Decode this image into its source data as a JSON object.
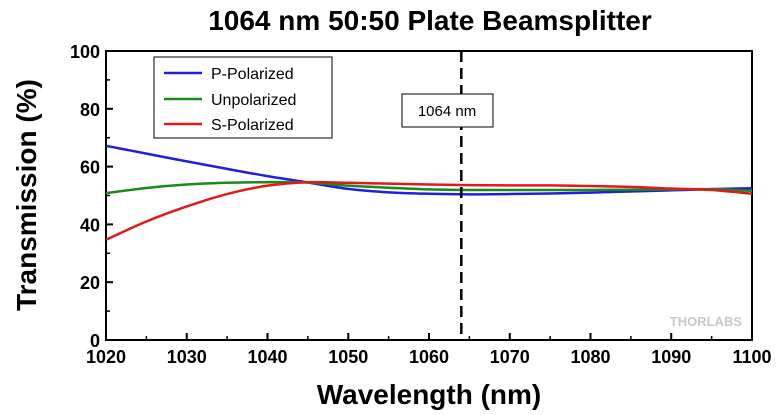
{
  "chart_data": {
    "type": "line",
    "title": "1064 nm 50:50 Plate Beamsplitter",
    "xlabel": "Wavelength (nm)",
    "ylabel": "Transmission (%)",
    "xlim": [
      1020,
      1100
    ],
    "ylim": [
      0,
      100
    ],
    "xticks": [
      1020,
      1030,
      1040,
      1050,
      1060,
      1070,
      1080,
      1090,
      1100
    ],
    "yticks": [
      0,
      20,
      40,
      60,
      80,
      100
    ],
    "grid": false,
    "legend_position": "top-left",
    "series": [
      {
        "name": "P-Polarized",
        "color": "#1f1fdd",
        "x": [
          1020,
          1025,
          1030,
          1035,
          1040,
          1045,
          1050,
          1055,
          1060,
          1065,
          1070,
          1075,
          1080,
          1085,
          1090,
          1095,
          1100
        ],
        "y": [
          67.2,
          64.5,
          61.8,
          59.2,
          56.7,
          54.5,
          52.3,
          51.1,
          50.6,
          50.4,
          50.5,
          50.7,
          51.0,
          51.4,
          51.8,
          52.2,
          52.5
        ]
      },
      {
        "name": "Unpolarized",
        "color": "#1a8a1a",
        "x": [
          1020,
          1025,
          1030,
          1035,
          1040,
          1045,
          1050,
          1055,
          1060,
          1065,
          1070,
          1075,
          1080,
          1085,
          1090,
          1095,
          1100
        ],
        "y": [
          50.8,
          52.6,
          53.8,
          54.4,
          54.6,
          54.5,
          53.4,
          52.7,
          52.1,
          51.9,
          51.9,
          51.9,
          51.9,
          52.0,
          52.1,
          52.2,
          51.6
        ]
      },
      {
        "name": "S-Polarized",
        "color": "#e01a1a",
        "x": [
          1020,
          1025,
          1030,
          1035,
          1040,
          1045,
          1050,
          1055,
          1060,
          1065,
          1070,
          1075,
          1080,
          1085,
          1090,
          1095,
          1100
        ],
        "y": [
          34.7,
          41.0,
          46.2,
          50.5,
          53.4,
          54.6,
          54.4,
          54.1,
          53.8,
          53.6,
          53.5,
          53.5,
          53.3,
          53.0,
          52.4,
          51.9,
          50.6
        ]
      }
    ],
    "annotations": [
      {
        "text": "1064 nm",
        "x": 1064,
        "style": "dashed-vertical-line"
      }
    ]
  },
  "watermark": "THORLABS",
  "colors": {
    "background": "#ffffff",
    "axis": "#000000",
    "marker_line": "#000000",
    "watermark": "#c8c8c8"
  }
}
